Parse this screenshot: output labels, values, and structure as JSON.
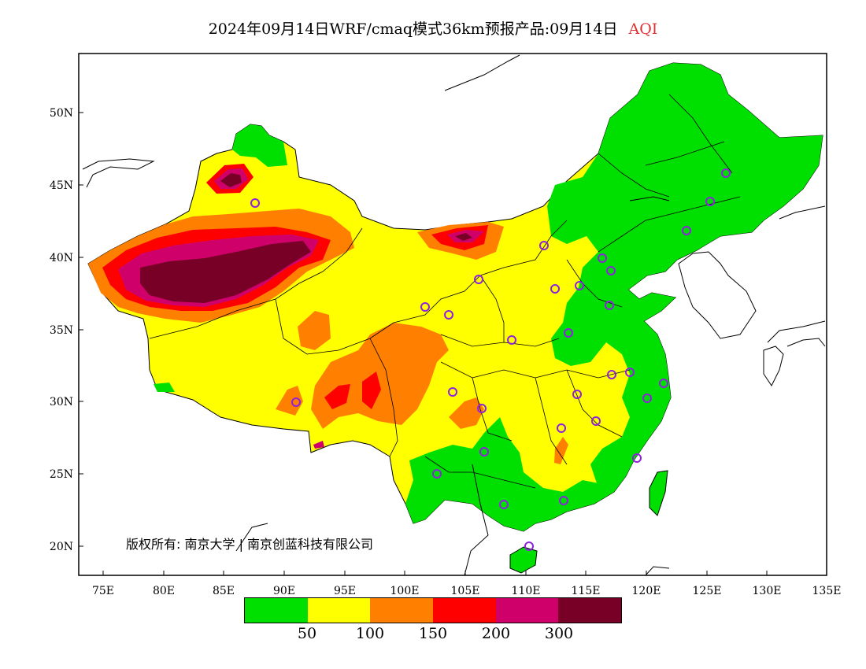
{
  "header": {
    "title": "2024年09月14日WRF/cmaq模式36km预报产品:09月14日",
    "variable": "AQI"
  },
  "map": {
    "x_ticks": [
      "75E",
      "80E",
      "85E",
      "90E",
      "95E",
      "100E",
      "105E",
      "110E",
      "115E",
      "120E",
      "125E",
      "130E",
      "135E"
    ],
    "y_ticks": [
      "20N",
      "25N",
      "30N",
      "35N",
      "40N",
      "45N",
      "50N"
    ],
    "copyright": "版权所有: 南京大学 | 南京创蓝科技有限公司",
    "colors": {
      "good": "#00e000",
      "moderate": "#ffff00",
      "usg": "#ff8000",
      "unhealthy": "#ff0000",
      "very_unhealthy": "#d0006a",
      "hazardous": "#780026",
      "station_marker": "#9020e0"
    }
  },
  "legend": {
    "colors": [
      "#00e000",
      "#ffff00",
      "#ff8000",
      "#ff0000",
      "#d0006a",
      "#780026"
    ],
    "labels": [
      "50",
      "100",
      "150",
      "200",
      "300"
    ]
  }
}
